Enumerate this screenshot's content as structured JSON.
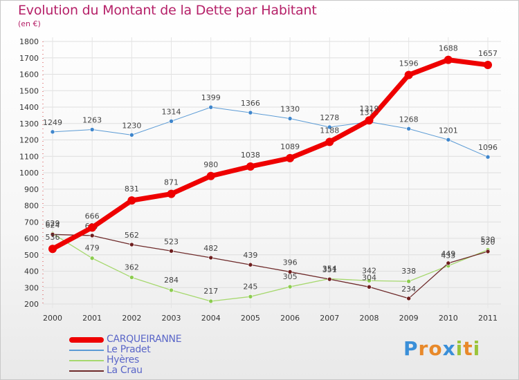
{
  "title": "Evolution du Montant de la Dette par Habitant",
  "subtitle": "(en €)",
  "logo": {
    "text": "Proxiti",
    "letters": [
      {
        "ch": "P",
        "color": "#3a8fd8"
      },
      {
        "ch": "r",
        "color": "#e8892a"
      },
      {
        "ch": "o",
        "color": "#e8892a"
      },
      {
        "ch": "x",
        "color": "#3a8fd8"
      },
      {
        "ch": "i",
        "color": "#9ac43a"
      },
      {
        "ch": "t",
        "color": "#e8892a"
      },
      {
        "ch": "i",
        "color": "#9ac43a"
      }
    ]
  },
  "chart_data": {
    "type": "line",
    "x": [
      "2000",
      "2001",
      "2002",
      "2003",
      "2004",
      "2005",
      "2006",
      "2007",
      "2008",
      "2009",
      "2010",
      "2011"
    ],
    "ylim": [
      200,
      1800
    ],
    "yticks": [
      200,
      300,
      400,
      500,
      600,
      700,
      800,
      900,
      1000,
      1100,
      1200,
      1300,
      1400,
      1500,
      1600,
      1700,
      1800
    ],
    "grid": true,
    "legend_position": "bottom-left",
    "series": [
      {
        "name": "Le Pradet",
        "color": "#5b9bd5",
        "width": 1,
        "dot": "#3f86cc",
        "values": [
          1249,
          1263,
          1230,
          1314,
          1399,
          1366,
          1330,
          1278,
          1310,
          1268,
          1201,
          1096
        ]
      },
      {
        "name": "Hyères",
        "color": "#a6d86e",
        "width": 1.3,
        "dot": "#8ccc50",
        "values": [
          629,
          479,
          362,
          284,
          217,
          245,
          305,
          354,
          342,
          338,
          433,
          530
        ]
      },
      {
        "name": "La Crau",
        "color": "#6e2a2a",
        "width": 1.3,
        "dot": "#6e1e1e",
        "values": [
          624,
          617,
          562,
          523,
          482,
          439,
          396,
          351,
          304,
          234,
          449,
          520
        ]
      },
      {
        "name": "CARQUEIRANNE",
        "color": "#ee0000",
        "width": 7,
        "dot": "#ee0000",
        "values": [
          536,
          666,
          831,
          871,
          980,
          1038,
          1089,
          1188,
          1319,
          1596,
          1688,
          1657
        ]
      }
    ],
    "legend_order": [
      "CARQUEIRANNE",
      "Le Pradet",
      "Hyères",
      "La Crau"
    ]
  }
}
